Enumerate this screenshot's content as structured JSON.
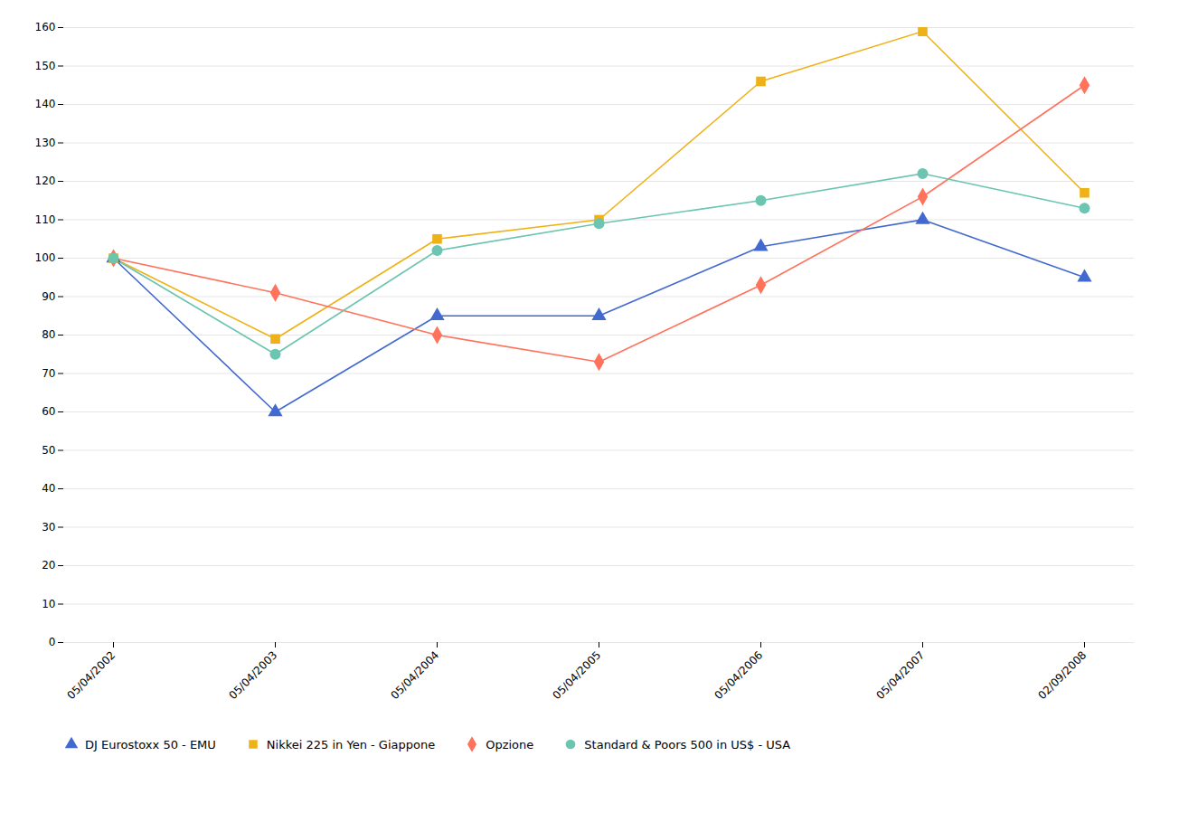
{
  "chart_data": {
    "type": "line",
    "categories": [
      "05/04/2002",
      "05/04/2003",
      "05/04/2004",
      "05/04/2005",
      "05/04/2006",
      "05/04/2007",
      "02/09/2008"
    ],
    "series": [
      {
        "name": "DJ Eurostoxx 50 - EMU",
        "values": [
          100,
          60,
          85,
          85,
          103,
          110,
          95
        ],
        "marker": "triangle"
      },
      {
        "name": "Nikkei 225 in Yen - Giappone",
        "values": [
          100,
          79,
          105,
          110,
          146,
          159,
          117
        ],
        "marker": "square"
      },
      {
        "name": "Opzione",
        "values": [
          100,
          91,
          80,
          73,
          93,
          116,
          145
        ],
        "marker": "diamond"
      },
      {
        "name": "Standard & Poors 500 in US$ - USA",
        "values": [
          100,
          75,
          102,
          109,
          115,
          122,
          113
        ],
        "marker": "circle"
      }
    ],
    "ylim": [
      0,
      160
    ],
    "yticks": [
      0,
      10,
      20,
      30,
      40,
      50,
      60,
      70,
      80,
      90,
      100,
      110,
      120,
      130,
      140,
      150,
      160
    ],
    "grid": true,
    "legend": "bottom"
  }
}
